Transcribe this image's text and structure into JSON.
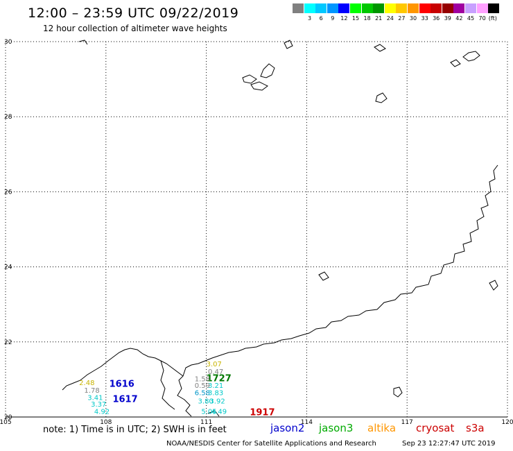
{
  "header": {
    "title": "12:00 – 23:59 UTC 09/22/2019",
    "subtitle": "12 hour collection of altimeter wave heights"
  },
  "legend": {
    "unit": "(ft)",
    "bins": [
      {
        "label": "",
        "color": "#808080"
      },
      {
        "label": "3",
        "color": "#00ffff"
      },
      {
        "label": "6",
        "color": "#00c8ff"
      },
      {
        "label": "9",
        "color": "#0096ff"
      },
      {
        "label": "12",
        "color": "#0000ff"
      },
      {
        "label": "15",
        "color": "#00ff00"
      },
      {
        "label": "18",
        "color": "#00c800"
      },
      {
        "label": "21",
        "color": "#009600"
      },
      {
        "label": "24",
        "color": "#ffff00"
      },
      {
        "label": "27",
        "color": "#ffc800"
      },
      {
        "label": "30",
        "color": "#ff9600"
      },
      {
        "label": "33",
        "color": "#ff0000"
      },
      {
        "label": "36",
        "color": "#c80000"
      },
      {
        "label": "39",
        "color": "#960000"
      },
      {
        "label": "42",
        "color": "#a000a0"
      },
      {
        "label": "45",
        "color": "#c8a0ff"
      },
      {
        "label": "70",
        "color": "#ffa0ff"
      },
      {
        "label": "",
        "color": "#000000"
      }
    ]
  },
  "map": {
    "lon_range": [
      105,
      120
    ],
    "lat_range": [
      20,
      30
    ],
    "lon_ticks": [
      "105",
      "108",
      "111",
      "114",
      "117",
      "120"
    ],
    "lat_ticks": [
      "30",
      "28",
      "26",
      "24",
      "22",
      "20"
    ],
    "passes": [
      {
        "text": "1616",
        "lon": 108.1,
        "lat": 20.8,
        "color": "#0000cc"
      },
      {
        "text": "1617",
        "lon": 108.2,
        "lat": 20.4,
        "color": "#0000cc"
      },
      {
        "text": "1727",
        "lon": 111.0,
        "lat": 20.95,
        "color": "#007700"
      },
      {
        "text": "1917",
        "lon": 112.3,
        "lat": 20.05,
        "color": "#cc0000"
      }
    ],
    "wave_heights": [
      {
        "text": "3.07",
        "lon": 111.0,
        "lat": 21.35,
        "color": "#c8b400"
      },
      {
        "text": "0.47",
        "lon": 111.05,
        "lat": 21.15,
        "color": "#808080"
      },
      {
        "text": "1.58",
        "lon": 110.65,
        "lat": 20.95,
        "color": "#808080"
      },
      {
        "text": "0.59",
        "lon": 110.65,
        "lat": 20.78,
        "color": "#808080"
      },
      {
        "text": "3.21",
        "lon": 111.05,
        "lat": 20.78,
        "color": "#00c8c8"
      },
      {
        "text": "6.58",
        "lon": 110.65,
        "lat": 20.58,
        "color": "#0096c8"
      },
      {
        "text": "3.83",
        "lon": 111.05,
        "lat": 20.58,
        "color": "#00c8c8"
      },
      {
        "text": "3.80",
        "lon": 110.75,
        "lat": 20.36,
        "color": "#00c8c8"
      },
      {
        "text": "3.92",
        "lon": 111.1,
        "lat": 20.36,
        "color": "#00c8c8"
      },
      {
        "text": "5.05",
        "lon": 110.85,
        "lat": 20.08,
        "color": "#00c8c8"
      },
      {
        "text": "4.49",
        "lon": 111.15,
        "lat": 20.08,
        "color": "#00c8c8"
      },
      {
        "text": "2.48",
        "lon": 107.2,
        "lat": 20.85,
        "color": "#c8b400"
      },
      {
        "text": "1.78",
        "lon": 107.35,
        "lat": 20.65,
        "color": "#808080"
      },
      {
        "text": "3.41",
        "lon": 107.45,
        "lat": 20.45,
        "color": "#00c8c8"
      },
      {
        "text": "3.37",
        "lon": 107.55,
        "lat": 20.28,
        "color": "#00c8c8"
      },
      {
        "text": "4.92",
        "lon": 107.65,
        "lat": 20.08,
        "color": "#00c8c8"
      }
    ]
  },
  "footer": {
    "note": "note: 1) Time is in UTC; 2) SWH is in feet",
    "satellites": [
      {
        "name": "jason2",
        "color": "#0000cc"
      },
      {
        "name": "jason3",
        "color": "#00aa00"
      },
      {
        "name": "altika",
        "color": "#ff9600"
      },
      {
        "name": "cryosat",
        "color": "#cc0000"
      },
      {
        "name": "s3a",
        "color": "#cc0000"
      }
    ],
    "credit": "NOAA/NESDIS Center for Satellite Applications and Research",
    "timestamp": "Sep 23 12:27:47 UTC 2019"
  }
}
